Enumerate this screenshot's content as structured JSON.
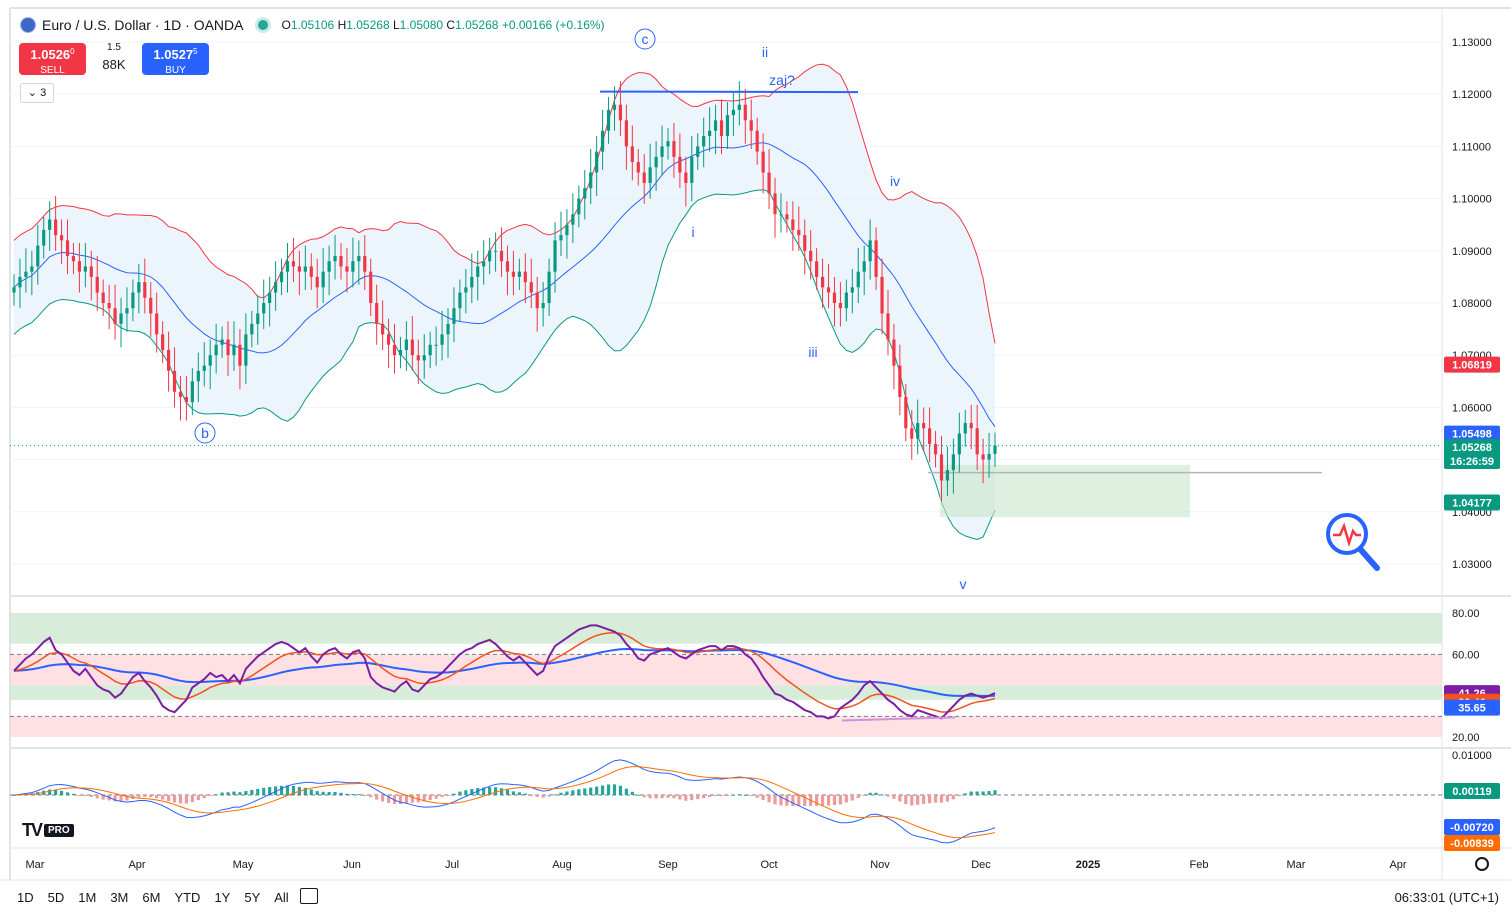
{
  "header": {
    "title": "Euro / U.S. Dollar · 1D · OANDA",
    "ohlc": {
      "o_label": "O",
      "o_value": "1.05106",
      "h_label": "H",
      "h_value": "1.05268",
      "l_label": "L",
      "l_value": "1.05080",
      "c_label": "C",
      "c_value": "1.05268",
      "change": "+0.00166 (+0.16%)"
    },
    "sell": {
      "price": "1.0526",
      "sup": "0",
      "label": "SELL"
    },
    "buy": {
      "price": "1.0527",
      "sup": "5",
      "label": "BUY"
    },
    "spread": "1.5",
    "volume": "88K",
    "collapse_label": "3"
  },
  "colors": {
    "up": "#089981",
    "down": "#f23645",
    "bb_upper": "#f23645",
    "bb_lower": "#089981",
    "bb_basis": "#2962ff",
    "bb_fill": "#e9f3fb",
    "rsi": "#7b1fa2",
    "rsi_ma": "#f4511e",
    "rsi_slow": "#2962ff",
    "macd": "#2962ff",
    "signal": "#ff6d00"
  },
  "price_axis": {
    "labels": [
      "1.13000",
      "1.12000",
      "1.11000",
      "1.10000",
      "1.09000",
      "1.08000",
      "1.07000",
      "1.06000",
      "1.05000",
      "1.04000",
      "1.03000"
    ],
    "tags": [
      {
        "text": "1.06819",
        "color": "#f23645"
      },
      {
        "text": "1.05498",
        "color": "#2962ff"
      },
      {
        "text": "1.05268",
        "color": "#089981"
      },
      {
        "text": "16:26:59",
        "color": "#089981"
      },
      {
        "text": "1.04177",
        "color": "#089981"
      }
    ]
  },
  "rsi_axis": {
    "labels": [
      "80.00",
      "60.00",
      "20.00"
    ],
    "tags": [
      {
        "text": "41.26",
        "color": "#7b1fa2"
      },
      {
        "text": "39.46",
        "color": "#f4511e"
      },
      {
        "text": "35.65",
        "color": "#2962ff"
      }
    ]
  },
  "macd_axis": {
    "labels": [
      "0.01000"
    ],
    "tags": [
      {
        "text": "0.00119",
        "color": "#089981"
      },
      {
        "text": "-0.00720",
        "color": "#2962ff"
      },
      {
        "text": "-0.00839",
        "color": "#ff6d00"
      }
    ]
  },
  "time_axis": [
    "Mar",
    "Apr",
    "May",
    "Jun",
    "Jul",
    "Aug",
    "Sep",
    "Oct",
    "Nov",
    "Dec",
    "2025",
    "Feb",
    "Mar",
    "Apr"
  ],
  "waves": [
    {
      "label": "c",
      "circled": true
    },
    {
      "label": "ii",
      "circled": false
    },
    {
      "label": "zaj?",
      "circled": false
    },
    {
      "label": "iv",
      "circled": false
    },
    {
      "label": "i",
      "circled": false
    },
    {
      "label": "iii",
      "circled": false
    },
    {
      "label": "b",
      "circled": true
    },
    {
      "label": "v",
      "circled": false
    }
  ],
  "toolbar": {
    "timeframes": [
      "1D",
      "5D",
      "1M",
      "3M",
      "6M",
      "YTD",
      "1Y",
      "5Y",
      "All"
    ],
    "clock": "06:33:01 (UTC+1)"
  },
  "logo": {
    "brand": "TV",
    "badge": "PRO"
  },
  "chart_data": {
    "type": "candlestick",
    "symbol": "EURUSD",
    "interval": "1D",
    "ylim": [
      1.025,
      1.135
    ],
    "x_range": [
      "2024-03-01",
      "2025-04-30"
    ],
    "key_levels": {
      "resistance": 1.1205,
      "support_zone": [
        1.039,
        1.049
      ],
      "support_line": 1.0475
    },
    "closes": [
      1.083,
      1.085,
      1.086,
      1.087,
      1.091,
      1.094,
      1.096,
      1.093,
      1.092,
      1.089,
      1.088,
      1.086,
      1.087,
      1.085,
      1.082,
      1.08,
      1.079,
      1.076,
      1.078,
      1.079,
      1.082,
      1.084,
      1.081,
      1.078,
      1.074,
      1.071,
      1.067,
      1.063,
      1.062,
      1.061,
      1.065,
      1.067,
      1.068,
      1.07,
      1.072,
      1.073,
      1.07,
      1.072,
      1.068,
      1.074,
      1.076,
      1.078,
      1.08,
      1.082,
      1.084,
      1.086,
      1.088,
      1.087,
      1.086,
      1.087,
      1.085,
      1.083,
      1.086,
      1.088,
      1.089,
      1.087,
      1.086,
      1.088,
      1.089,
      1.086,
      1.08,
      1.076,
      1.074,
      1.072,
      1.07,
      1.071,
      1.073,
      1.07,
      1.069,
      1.07,
      1.072,
      1.072,
      1.074,
      1.076,
      1.079,
      1.082,
      1.083,
      1.085,
      1.087,
      1.088,
      1.09,
      1.09,
      1.088,
      1.086,
      1.085,
      1.086,
      1.084,
      1.082,
      1.079,
      1.08,
      1.086,
      1.092,
      1.093,
      1.095,
      1.097,
      1.1,
      1.102,
      1.105,
      1.109,
      1.113,
      1.117,
      1.118,
      1.115,
      1.11,
      1.107,
      1.105,
      1.103,
      1.106,
      1.108,
      1.11,
      1.111,
      1.108,
      1.105,
      1.103,
      1.108,
      1.11,
      1.112,
      1.113,
      1.115,
      1.112,
      1.116,
      1.117,
      1.118,
      1.115,
      1.113,
      1.109,
      1.105,
      1.101,
      1.097,
      1.097,
      1.096,
      1.094,
      1.093,
      1.09,
      1.088,
      1.085,
      1.083,
      1.082,
      1.08,
      1.079,
      1.082,
      1.083,
      1.086,
      1.088,
      1.092,
      1.085,
      1.078,
      1.073,
      1.068,
      1.062,
      1.056,
      1.054,
      1.057,
      1.056,
      1.053,
      1.051,
      1.046,
      1.048,
      1.051,
      1.055,
      1.057,
      1.056,
      1.051,
      1.05,
      1.0511,
      1.0527
    ],
    "rsi": [
      52,
      55,
      58,
      60,
      63,
      66,
      68,
      62,
      60,
      56,
      52,
      50,
      53,
      49,
      45,
      43,
      42,
      39,
      41,
      45,
      49,
      51,
      47,
      44,
      40,
      35,
      33,
      32,
      35,
      38,
      44,
      46,
      48,
      51,
      49,
      50,
      47,
      50,
      46,
      53,
      56,
      59,
      61,
      63,
      65,
      66,
      65,
      63,
      61,
      63,
      59,
      56,
      60,
      62,
      63,
      60,
      58,
      61,
      62,
      58,
      49,
      46,
      44,
      43,
      42,
      45,
      47,
      43,
      42,
      45,
      48,
      49,
      51,
      54,
      57,
      60,
      62,
      63,
      65,
      66,
      67,
      65,
      62,
      59,
      57,
      59,
      56,
      53,
      50,
      52,
      59,
      64,
      66,
      68,
      70,
      72,
      73,
      74,
      74,
      73,
      72,
      71,
      69,
      65,
      62,
      58,
      57,
      60,
      61,
      62,
      63,
      61,
      59,
      58,
      60,
      62,
      63,
      64,
      64,
      62,
      64,
      64,
      63,
      60,
      58,
      54,
      49,
      45,
      41,
      40,
      38,
      37,
      35,
      33,
      32,
      30,
      30,
      29,
      30,
      34,
      36,
      38,
      41,
      45,
      47,
      44,
      41,
      38,
      36,
      33,
      31,
      30,
      33,
      32,
      31,
      30,
      29,
      32,
      35,
      38,
      40,
      41,
      40,
      39,
      40,
      41.26
    ],
    "rsi_ma": 39.46,
    "rsi_slow": 35.65,
    "rsi_bands": {
      "ob": 70,
      "mid_high": 60,
      "mid_low": 40,
      "os": 30
    },
    "macd_last": -0.0072,
    "signal_last": -0.00839,
    "hist_last": 0.00119
  }
}
